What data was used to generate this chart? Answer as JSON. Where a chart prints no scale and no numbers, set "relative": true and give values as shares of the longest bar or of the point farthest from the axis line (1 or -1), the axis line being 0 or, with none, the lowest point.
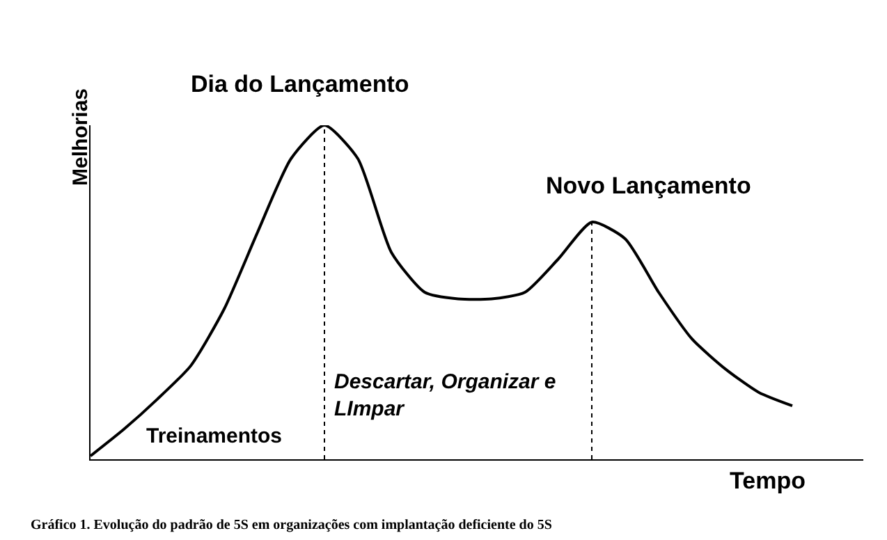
{
  "chart_data": {
    "type": "line",
    "relative": true,
    "color": "#000000",
    "marker": "none",
    "line_style": "solid",
    "xlabel": "Tempo",
    "ylabel": "Melhorias",
    "categories": [
      null,
      null,
      null,
      null,
      null,
      null,
      null,
      null,
      null,
      null,
      null,
      null,
      null,
      null,
      null,
      null,
      null,
      null,
      null,
      null,
      null,
      null
    ],
    "values": [
      0.01,
      0.09,
      0.18,
      0.28,
      0.45,
      0.68,
      0.9,
      1,
      0.9,
      0.62,
      0.5,
      0.48,
      0.48,
      0.5,
      0.6,
      0.71,
      0.66,
      0.5,
      0.36,
      0.27,
      0.2,
      0.16
    ],
    "annotations": [
      "Dia do Lançamento",
      "Novo Lançamento",
      "Descartar, Organizar e LImpar",
      "Treinamentos",
      "Gráfico 1. Evolução do padrão de 5S em organizações com implantação deficiente do 5S"
    ]
  }
}
